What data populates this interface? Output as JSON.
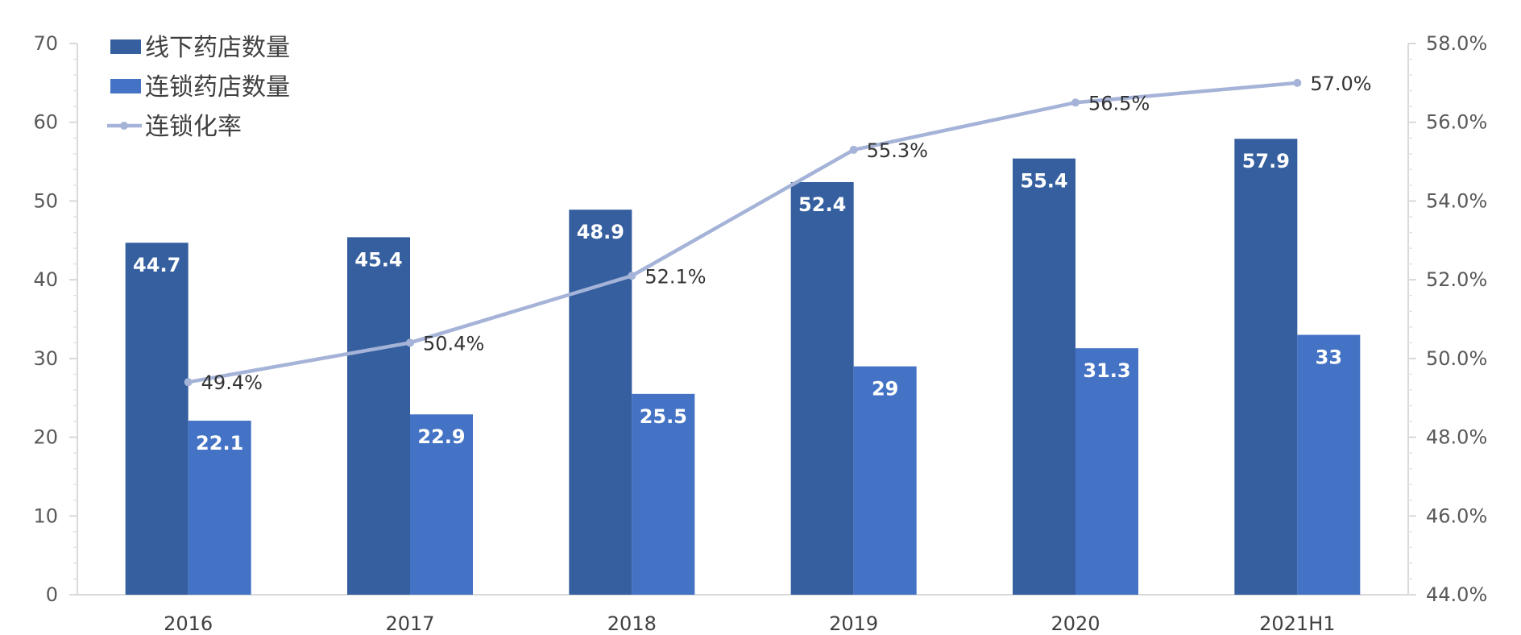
{
  "chart_data": {
    "type": "bar",
    "categories": [
      "2016",
      "2017",
      "2018",
      "2019",
      "2020",
      "2021H1"
    ],
    "series": [
      {
        "name": "线下药店数量",
        "type": "bar",
        "axis": "left",
        "color": "#365f9f",
        "values": [
          44.7,
          45.4,
          48.9,
          52.4,
          55.4,
          57.9
        ],
        "labels": [
          "44.7",
          "45.4",
          "48.9",
          "52.4",
          "55.4",
          "57.9"
        ]
      },
      {
        "name": "连锁药店数量",
        "type": "bar",
        "axis": "left",
        "color": "#4472c4",
        "values": [
          22.1,
          22.9,
          25.5,
          29,
          31.3,
          33
        ],
        "labels": [
          "22.1",
          "22.9",
          "25.5",
          "29",
          "31.3",
          "33"
        ]
      },
      {
        "name": "连锁化率",
        "type": "line",
        "axis": "right",
        "color": "#a4b3d7",
        "values": [
          49.4,
          50.4,
          52.1,
          55.3,
          56.5,
          57.0
        ],
        "labels": [
          "49.4%",
          "50.4%",
          "52.1%",
          "55.3%",
          "56.5%",
          "57.0%"
        ]
      }
    ],
    "y_left": {
      "range": [
        0,
        70
      ],
      "ticks": [
        "0",
        "10",
        "20",
        "30",
        "40",
        "50",
        "60",
        "70"
      ]
    },
    "y_right": {
      "range": [
        44,
        58
      ],
      "ticks": [
        "44.0%",
        "46.0%",
        "48.0%",
        "50.0%",
        "52.0%",
        "54.0%",
        "56.0%",
        "58.0%"
      ]
    },
    "grid": false,
    "legend": "top-left"
  }
}
